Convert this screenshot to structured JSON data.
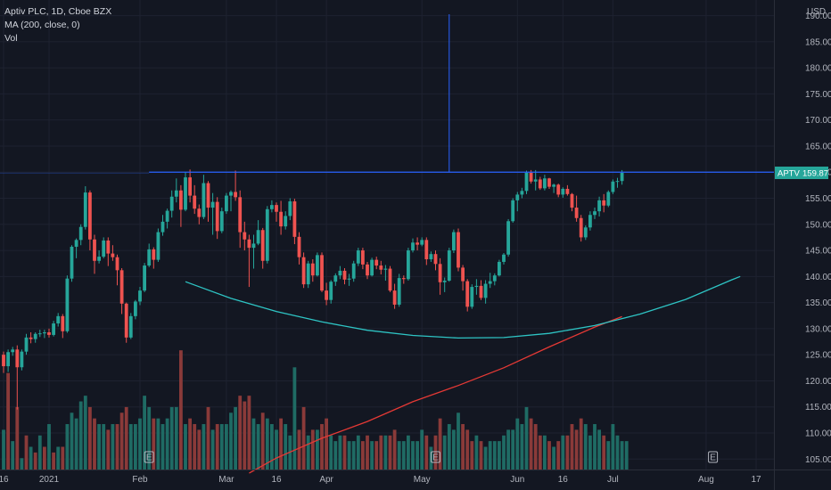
{
  "header": {
    "title": "Aptiv PLC, 1D, Cboe BZX",
    "indicator": "MA (200, close, 0)",
    "volume_label": "Vol"
  },
  "currency": "USD",
  "price_badge": {
    "symbol": "APTV",
    "value": "159.87"
  },
  "earnings_marker": "E",
  "colors": {
    "background": "#131722",
    "grid": "#1e2230",
    "up": "#26a69a",
    "down": "#ef5350",
    "vol_up": "#1f6b64",
    "vol_down": "#8a3a39",
    "ma": "#e53935",
    "curve": "#2ec4c4",
    "lines": "#2962ff",
    "badge": "#26a69a"
  },
  "chart_data": {
    "type": "candlestick",
    "y_axis": {
      "min": 103,
      "max": 193,
      "ticks": [
        105,
        110,
        115,
        120,
        125,
        130,
        135,
        140,
        145,
        150,
        155,
        160,
        165,
        170,
        175,
        180,
        185,
        190
      ]
    },
    "x_axis_labels": [
      {
        "label": "16",
        "i": 0
      },
      {
        "label": "2021",
        "i": 10
      },
      {
        "label": "Feb",
        "i": 30
      },
      {
        "label": "Mar",
        "i": 49
      },
      {
        "label": "16",
        "i": 60
      },
      {
        "label": "Apr",
        "i": 71
      },
      {
        "label": "May",
        "i": 92
      },
      {
        "label": "Jun",
        "i": 113
      },
      {
        "label": "16",
        "i": 123
      },
      {
        "label": "Jul",
        "i": 134
      },
      {
        "label": "Aug",
        "i": 154.5
      },
      {
        "label": "17",
        "i": 165.5
      }
    ],
    "earnings_i": [
      32,
      95,
      156
    ],
    "candles": [
      [
        125,
        125.6,
        121.5,
        122.8
      ],
      [
        122.8,
        126,
        121.7,
        125.5
      ],
      [
        125.5,
        126.5,
        124.8,
        126
      ],
      [
        126,
        126.8,
        114.5,
        122.6
      ],
      [
        122.6,
        126,
        122,
        125.6
      ],
      [
        125.6,
        129,
        125,
        128.3
      ],
      [
        128.3,
        129.3,
        127.2,
        128
      ],
      [
        128,
        129.3,
        127.3,
        129
      ],
      [
        129,
        129.8,
        128.4,
        129.1
      ],
      [
        129.1,
        129.8,
        128.2,
        129.3
      ],
      [
        129.3,
        130,
        128.3,
        128.8
      ],
      [
        128.8,
        131.5,
        128.5,
        131
      ],
      [
        131,
        133,
        130.4,
        132.4
      ],
      [
        132.4,
        132.8,
        128.2,
        129.5
      ],
      [
        129.5,
        140.2,
        129.2,
        139.6
      ],
      [
        139.6,
        146,
        139,
        145.7
      ],
      [
        145.7,
        147.3,
        143.5,
        147
      ],
      [
        147,
        150,
        146,
        149.5
      ],
      [
        149.5,
        157.3,
        149,
        156.1
      ],
      [
        156.1,
        156.5,
        145,
        147.1
      ],
      [
        147.1,
        148,
        140.5,
        143
      ],
      [
        143,
        145,
        142.5,
        143.8
      ],
      [
        143.8,
        147.5,
        143.5,
        146.9
      ],
      [
        146.9,
        147.5,
        142,
        144.4
      ],
      [
        144.4,
        146,
        143,
        143.7
      ],
      [
        143.7,
        144.2,
        138.3,
        141.2
      ],
      [
        141.2,
        141.6,
        132.8,
        134.8
      ],
      [
        134.8,
        135,
        127.3,
        128.3
      ],
      [
        128.3,
        133,
        128,
        132.4
      ],
      [
        132.4,
        135.5,
        131.8,
        135.2
      ],
      [
        135.2,
        138,
        134.5,
        137.3
      ],
      [
        137.3,
        142.6,
        137,
        142.1
      ],
      [
        142.1,
        146.3,
        141.8,
        145.2
      ],
      [
        145.2,
        145.6,
        141.5,
        143.2
      ],
      [
        143.2,
        149.2,
        142.8,
        148.5
      ],
      [
        148.5,
        151.8,
        147.8,
        150.5
      ],
      [
        150.5,
        153,
        149.2,
        152.6
      ],
      [
        152.6,
        156.5,
        151.3,
        155.3
      ],
      [
        155.3,
        158.8,
        154.2,
        156.5
      ],
      [
        156.5,
        157.5,
        149.5,
        152.8
      ],
      [
        152.8,
        160,
        152.5,
        159
      ],
      [
        159,
        160.5,
        154.2,
        155.5
      ],
      [
        155.5,
        157.5,
        152,
        153
      ],
      [
        153,
        153.8,
        150,
        151.4
      ],
      [
        151.4,
        159.5,
        151,
        157.9
      ],
      [
        157.9,
        158.3,
        150.5,
        153.2
      ],
      [
        153.2,
        156,
        148,
        154.3
      ],
      [
        154.3,
        155.2,
        147.2,
        148.7
      ],
      [
        148.7,
        153.2,
        148.3,
        152.5
      ],
      [
        152.5,
        156,
        152,
        155.5
      ],
      [
        155.5,
        156.5,
        152.5,
        156.2
      ],
      [
        156.2,
        160.3,
        154.5,
        155.2
      ],
      [
        155.2,
        156.5,
        145.5,
        148.5
      ],
      [
        148.5,
        150.5,
        145,
        147.1
      ],
      [
        147.1,
        148,
        138,
        145.5
      ],
      [
        145.5,
        148,
        141.5,
        146.3
      ],
      [
        146.3,
        150.8,
        146,
        148.9
      ],
      [
        148.9,
        149.3,
        141.5,
        143
      ],
      [
        143,
        153.5,
        142.5,
        152.9
      ],
      [
        152.9,
        154.6,
        152.3,
        153.7
      ],
      [
        153.7,
        154.2,
        150.5,
        152.4
      ],
      [
        152.4,
        154.5,
        148,
        149.6
      ],
      [
        149.6,
        152.5,
        149,
        151.6
      ],
      [
        151.6,
        155,
        150.8,
        154.4
      ],
      [
        154.4,
        154.9,
        146.2,
        147.6
      ],
      [
        147.6,
        148.5,
        142.3,
        143.7
      ],
      [
        143.7,
        144.6,
        137.8,
        138.5
      ],
      [
        138.5,
        143,
        137.8,
        142.5
      ],
      [
        142.5,
        143.3,
        139,
        140.2
      ],
      [
        140.2,
        144.6,
        140,
        144.1
      ],
      [
        144.1,
        144.6,
        137,
        137.3
      ],
      [
        137.3,
        138.8,
        134.5,
        135.5
      ],
      [
        135.5,
        139.3,
        134.8,
        139
      ],
      [
        139,
        140.6,
        138.2,
        140.2
      ],
      [
        140.2,
        142,
        139.5,
        141.1
      ],
      [
        141.1,
        141.6,
        138.5,
        139.4
      ],
      [
        139.4,
        140.5,
        138.2,
        139.6
      ],
      [
        139.6,
        143,
        139,
        142.5
      ],
      [
        142.5,
        145.5,
        142,
        145
      ],
      [
        145,
        145.5,
        141.4,
        142.3
      ],
      [
        142.3,
        142.8,
        139.5,
        140.2
      ],
      [
        140.2,
        143.6,
        140,
        143.2
      ],
      [
        143.2,
        143.8,
        141.4,
        142.1
      ],
      [
        142.1,
        143,
        140.4,
        141.3
      ],
      [
        141.3,
        142.2,
        139.2,
        141.5
      ],
      [
        141.5,
        142,
        137,
        137.3
      ],
      [
        137.3,
        138.6,
        133.8,
        134.6
      ],
      [
        134.6,
        140.5,
        134.2,
        139.7
      ],
      [
        139.7,
        140.2,
        138.6,
        139.5
      ],
      [
        139.5,
        145.5,
        139.2,
        145
      ],
      [
        145,
        147.3,
        144.6,
        146.5
      ],
      [
        146.5,
        147.5,
        145,
        146.1
      ],
      [
        146.1,
        147.5,
        145.8,
        147
      ],
      [
        147,
        147.5,
        142.2,
        143.3
      ],
      [
        143.3,
        144.8,
        142.8,
        144.3
      ],
      [
        144.3,
        145,
        141.2,
        142.4
      ],
      [
        142.4,
        143.5,
        136.5,
        138.9
      ],
      [
        138.9,
        139.8,
        137,
        139.2
      ],
      [
        139.2,
        145.5,
        139,
        145
      ],
      [
        145,
        149,
        144.5,
        148.5
      ],
      [
        148.5,
        149.2,
        141,
        141.7
      ],
      [
        141.7,
        142.2,
        137.3,
        139.1
      ],
      [
        139.1,
        139.5,
        133.3,
        134.2
      ],
      [
        134.2,
        138.5,
        133.8,
        138
      ],
      [
        138,
        139.5,
        136.5,
        138.2
      ],
      [
        138.2,
        139.3,
        135.5,
        135.9
      ],
      [
        135.9,
        139.3,
        134.8,
        138.6
      ],
      [
        138.6,
        140.7,
        137.8,
        139.1
      ],
      [
        139.1,
        140.6,
        138.3,
        140.2
      ],
      [
        140.2,
        143.2,
        140,
        142.8
      ],
      [
        142.8,
        144.5,
        142.3,
        144.2
      ],
      [
        144.2,
        151,
        143.8,
        150.6
      ],
      [
        150.6,
        155,
        150.3,
        154.6
      ],
      [
        154.6,
        156.2,
        152.5,
        155.7
      ],
      [
        155.7,
        157,
        155,
        156.4
      ],
      [
        156.4,
        160.3,
        155.8,
        159.9
      ],
      [
        159.9,
        160.4,
        157.8,
        158.2
      ],
      [
        158.2,
        160.4,
        156.5,
        158.6
      ],
      [
        158.6,
        159.1,
        156.6,
        156.9
      ],
      [
        156.9,
        159.5,
        156.5,
        158.8
      ],
      [
        158.8,
        158.9,
        156.8,
        157.2
      ],
      [
        157.2,
        157.8,
        156,
        157.6
      ],
      [
        157.6,
        157.8,
        155.2,
        155.7
      ],
      [
        155.7,
        157.1,
        155.1,
        156.8
      ],
      [
        156.8,
        157.5,
        155.5,
        155.8
      ],
      [
        155.8,
        156,
        152.5,
        153.2
      ],
      [
        153.2,
        155.5,
        150.5,
        151.2
      ],
      [
        151.2,
        151.8,
        146.7,
        147.5
      ],
      [
        147.5,
        149.8,
        147,
        149.4
      ],
      [
        149.4,
        152.5,
        148.8,
        151.8
      ],
      [
        151.8,
        153.2,
        151,
        152.5
      ],
      [
        152.5,
        155.3,
        151.5,
        154.6
      ],
      [
        154.6,
        155.8,
        152.3,
        153.6
      ],
      [
        153.6,
        156.5,
        153.3,
        156.2
      ],
      [
        156.2,
        158.6,
        155.8,
        158.2
      ],
      [
        158.2,
        158.9,
        157,
        158.3
      ],
      [
        158.3,
        160.4,
        157.6,
        159.87
      ]
    ],
    "volume_scale": {
      "min": 0,
      "max": 21.5
    },
    "volume": [
      [
        7,
        1
      ],
      [
        17,
        0
      ],
      [
        5,
        1
      ],
      [
        11,
        0
      ],
      [
        2,
        1
      ],
      [
        6,
        0
      ],
      [
        4,
        1
      ],
      [
        3,
        0
      ],
      [
        6,
        1
      ],
      [
        4,
        0
      ],
      [
        8,
        1
      ],
      [
        3,
        0
      ],
      [
        4,
        1
      ],
      [
        4,
        0
      ],
      [
        8,
        1
      ],
      [
        10,
        1
      ],
      [
        9,
        1
      ],
      [
        12,
        1
      ],
      [
        13,
        1
      ],
      [
        11,
        0
      ],
      [
        9,
        0
      ],
      [
        8,
        1
      ],
      [
        8,
        1
      ],
      [
        7,
        0
      ],
      [
        8,
        1
      ],
      [
        8,
        0
      ],
      [
        10,
        0
      ],
      [
        11,
        0
      ],
      [
        8,
        1
      ],
      [
        8,
        1
      ],
      [
        9,
        1
      ],
      [
        13,
        1
      ],
      [
        11,
        1
      ],
      [
        9,
        0
      ],
      [
        9,
        1
      ],
      [
        8,
        1
      ],
      [
        9,
        1
      ],
      [
        11,
        1
      ],
      [
        11,
        1
      ],
      [
        21,
        0
      ],
      [
        8,
        1
      ],
      [
        9,
        0
      ],
      [
        8,
        0
      ],
      [
        7,
        0
      ],
      [
        8,
        1
      ],
      [
        11,
        0
      ],
      [
        7,
        1
      ],
      [
        8,
        0
      ],
      [
        8,
        1
      ],
      [
        8,
        1
      ],
      [
        10,
        1
      ],
      [
        11,
        1
      ],
      [
        13,
        0
      ],
      [
        12,
        0
      ],
      [
        13,
        0
      ],
      [
        9,
        1
      ],
      [
        8,
        1
      ],
      [
        10,
        0
      ],
      [
        9,
        1
      ],
      [
        8,
        1
      ],
      [
        7,
        1
      ],
      [
        9,
        0
      ],
      [
        8,
        1
      ],
      [
        6,
        1
      ],
      [
        18,
        1
      ],
      [
        7,
        0
      ],
      [
        11,
        0
      ],
      [
        6,
        1
      ],
      [
        7,
        0
      ],
      [
        7,
        1
      ],
      [
        8,
        0
      ],
      [
        9,
        0
      ],
      [
        6,
        1
      ],
      [
        5,
        1
      ],
      [
        6,
        1
      ],
      [
        6,
        0
      ],
      [
        5,
        1
      ],
      [
        5,
        1
      ],
      [
        6,
        1
      ],
      [
        5,
        0
      ],
      [
        6,
        0
      ],
      [
        5,
        1
      ],
      [
        5,
        0
      ],
      [
        6,
        0
      ],
      [
        6,
        1
      ],
      [
        6,
        0
      ],
      [
        7,
        0
      ],
      [
        5,
        1
      ],
      [
        5,
        1
      ],
      [
        6,
        1
      ],
      [
        5,
        1
      ],
      [
        5,
        1
      ],
      [
        7,
        1
      ],
      [
        6,
        0
      ],
      [
        4,
        1
      ],
      [
        6,
        0
      ],
      [
        9,
        0
      ],
      [
        6,
        1
      ],
      [
        8,
        1
      ],
      [
        7,
        1
      ],
      [
        10,
        1
      ],
      [
        8,
        0
      ],
      [
        7,
        0
      ],
      [
        5,
        0
      ],
      [
        6,
        1
      ],
      [
        5,
        0
      ],
      [
        4,
        1
      ],
      [
        5,
        1
      ],
      [
        5,
        1
      ],
      [
        5,
        1
      ],
      [
        6,
        1
      ],
      [
        7,
        1
      ],
      [
        7,
        1
      ],
      [
        9,
        1
      ],
      [
        8,
        1
      ],
      [
        11,
        1
      ],
      [
        9,
        0
      ],
      [
        8,
        0
      ],
      [
        6,
        0
      ],
      [
        6,
        1
      ],
      [
        5,
        0
      ],
      [
        4,
        1
      ],
      [
        5,
        0
      ],
      [
        6,
        1
      ],
      [
        6,
        0
      ],
      [
        8,
        0
      ],
      [
        7,
        0
      ],
      [
        9,
        0
      ],
      [
        8,
        1
      ],
      [
        6,
        1
      ],
      [
        8,
        1
      ],
      [
        7,
        1
      ],
      [
        6,
        0
      ],
      [
        5,
        1
      ],
      [
        8,
        1
      ],
      [
        6,
        1
      ],
      [
        5,
        1
      ],
      [
        5,
        1
      ]
    ],
    "ma_line": [
      [
        54,
        102.3
      ],
      [
        60,
        105.2
      ],
      [
        70,
        109
      ],
      [
        80,
        112.2
      ],
      [
        90,
        116
      ],
      [
        100,
        119.1
      ],
      [
        110,
        122.5
      ],
      [
        120,
        126.5
      ],
      [
        130,
        130.3
      ],
      [
        136,
        132.3
      ]
    ],
    "curve": [
      [
        40,
        139
      ],
      [
        50,
        135.8
      ],
      [
        60,
        133.3
      ],
      [
        70,
        131.3
      ],
      [
        80,
        129.7
      ],
      [
        90,
        128.7
      ],
      [
        100,
        128.2
      ],
      [
        110,
        128.3
      ],
      [
        120,
        129.1
      ],
      [
        130,
        130.6
      ],
      [
        140,
        132.8
      ],
      [
        150,
        135.6
      ],
      [
        160,
        139.3
      ],
      [
        162,
        140
      ]
    ],
    "horizontal_level": 160,
    "vertical_marker_i": 98
  }
}
